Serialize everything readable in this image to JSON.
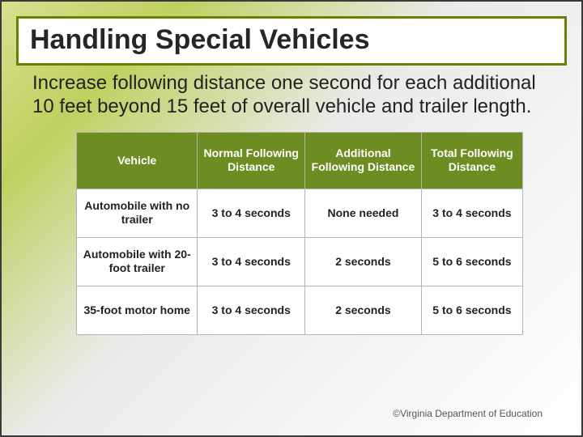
{
  "title": "Handling Special Vehicles",
  "intro": "Increase following distance one second for each additional 10 feet beyond 15 feet of overall vehicle and trailer length.",
  "table": {
    "columns": [
      "Vehicle",
      "Normal Following Distance",
      "Additional Following Distance",
      "Total Following Distance"
    ],
    "rows": [
      [
        "Automobile with no trailer",
        "3 to 4 seconds",
        "None needed",
        "3 to 4 seconds"
      ],
      [
        "Automobile with 20-foot trailer",
        "3 to 4 seconds",
        "2 seconds",
        "5 to 6 seconds"
      ],
      [
        "35-foot motor home",
        "3 to 4 seconds",
        "2 seconds",
        "5 to 6 seconds"
      ]
    ],
    "header_bg": "#6d8d22",
    "header_text_color": "#ffffff",
    "cell_bg": "#ffffff",
    "border_color": "#b5b5b5",
    "header_fontsize": 14,
    "cell_fontsize": 14
  },
  "copyright": "©Virginia Department of Education",
  "colors": {
    "title_border": "#6b8000",
    "page_border": "#3a3a3a",
    "bg_gradient_start": "#d8e090",
    "bg_gradient_mid": "#c0d060",
    "bg_gradient_end": "#ffffff"
  }
}
